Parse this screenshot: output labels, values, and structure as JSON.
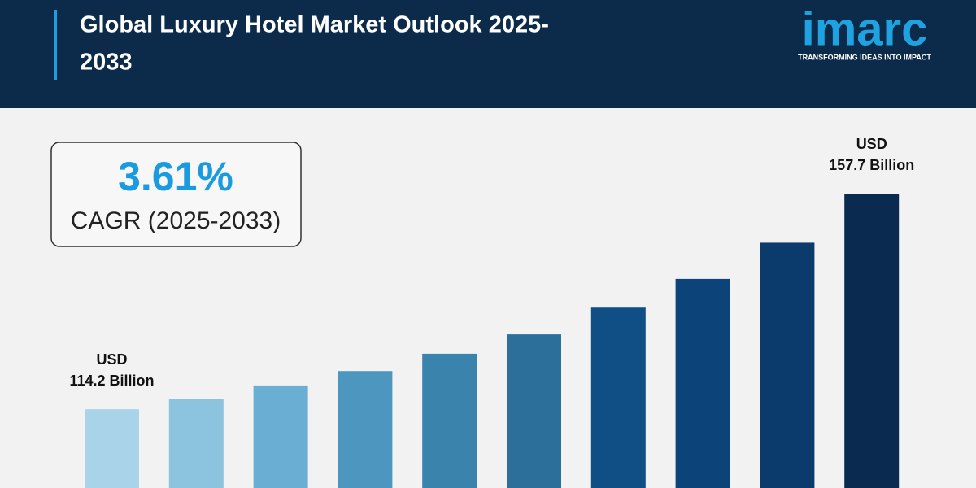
{
  "chart_data": {
    "type": "bar",
    "title": [
      "Global Luxury Hotel Market Outlook 2025-",
      "2033"
    ],
    "cagr": {
      "value": "3.61%",
      "label": "CAGR (2025-2033)"
    },
    "values": [
      114.2,
      116.2,
      119.0,
      121.9,
      125.4,
      129.3,
      134.7,
      140.5,
      147.8,
      157.7
    ],
    "value_labels": [
      [
        "USD",
        "114.2 Billion"
      ],
      null,
      null,
      null,
      null,
      null,
      null,
      null,
      null,
      [
        "USD",
        "157.7 Billion"
      ]
    ],
    "colors": [
      "#a9d3e8",
      "#8cc4df",
      "#6aaed3",
      "#4d96c0",
      "#3983ad",
      "#2c6f9a",
      "#0f4f85",
      "#0c4479",
      "#0b3a6c",
      "#0b2a4f"
    ],
    "ylim": [
      98.3,
      173.8
    ]
  },
  "logo": {
    "name": "imarc",
    "tagline": "TRANSFORMING IDEAS INTO IMPACT"
  }
}
